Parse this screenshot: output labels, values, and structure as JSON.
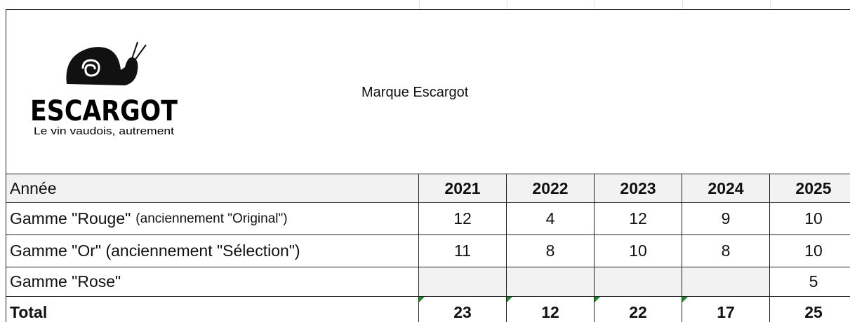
{
  "logo": {
    "brand": "ESCARGOT",
    "tagline": "Le vin vaudois, autrement"
  },
  "title": "Marque Escargot",
  "table": {
    "header": {
      "label": "Année",
      "years": [
        2021,
        2022,
        2023,
        2024,
        2025
      ]
    },
    "rows": [
      {
        "label": "Gamme \"Rouge\"",
        "note": "(anciennement \"Original\")",
        "values": [
          12,
          4,
          12,
          9,
          10
        ]
      },
      {
        "label": "Gamme \"Or\" (anciennement \"Sélection\")",
        "values": [
          11,
          8,
          10,
          8,
          10
        ]
      },
      {
        "label": "Gamme \"Rose\"",
        "values": [
          null,
          null,
          null,
          null,
          5
        ]
      }
    ],
    "total": {
      "label": "Total",
      "values": [
        23,
        12,
        22,
        17,
        25
      ]
    }
  }
}
